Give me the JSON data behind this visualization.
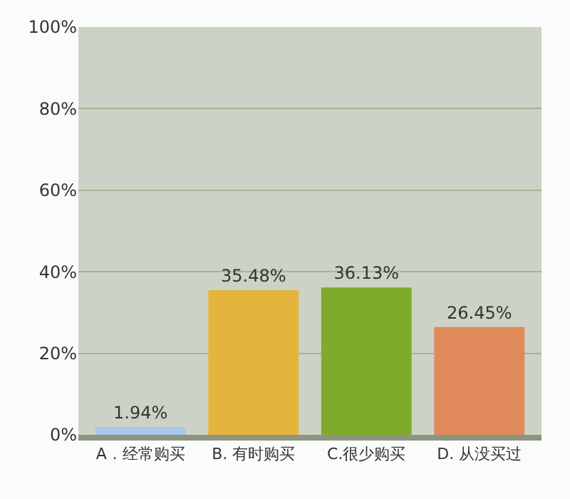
{
  "chart_data": {
    "type": "bar",
    "categories": [
      "A．经常购买",
      "B. 有时购买",
      "C.很少购买",
      "D. 从没买过"
    ],
    "values": [
      1.94,
      35.48,
      36.13,
      26.45
    ],
    "colors": [
      "#a9c6e8",
      "#e3b53c",
      "#7fab2a",
      "#e0895a"
    ],
    "value_labels": [
      "1.94%",
      "35.48%",
      "36.13%",
      "26.45%"
    ],
    "ylim": [
      0,
      100
    ],
    "yticks": [
      {
        "value": 0,
        "label": "0%"
      },
      {
        "value": 20,
        "label": "20%"
      },
      {
        "value": 40,
        "label": "40%"
      },
      {
        "value": 60,
        "label": "60%"
      },
      {
        "value": 80,
        "label": "80%"
      },
      {
        "value": 100,
        "label": "100%"
      }
    ],
    "grid": "y"
  }
}
